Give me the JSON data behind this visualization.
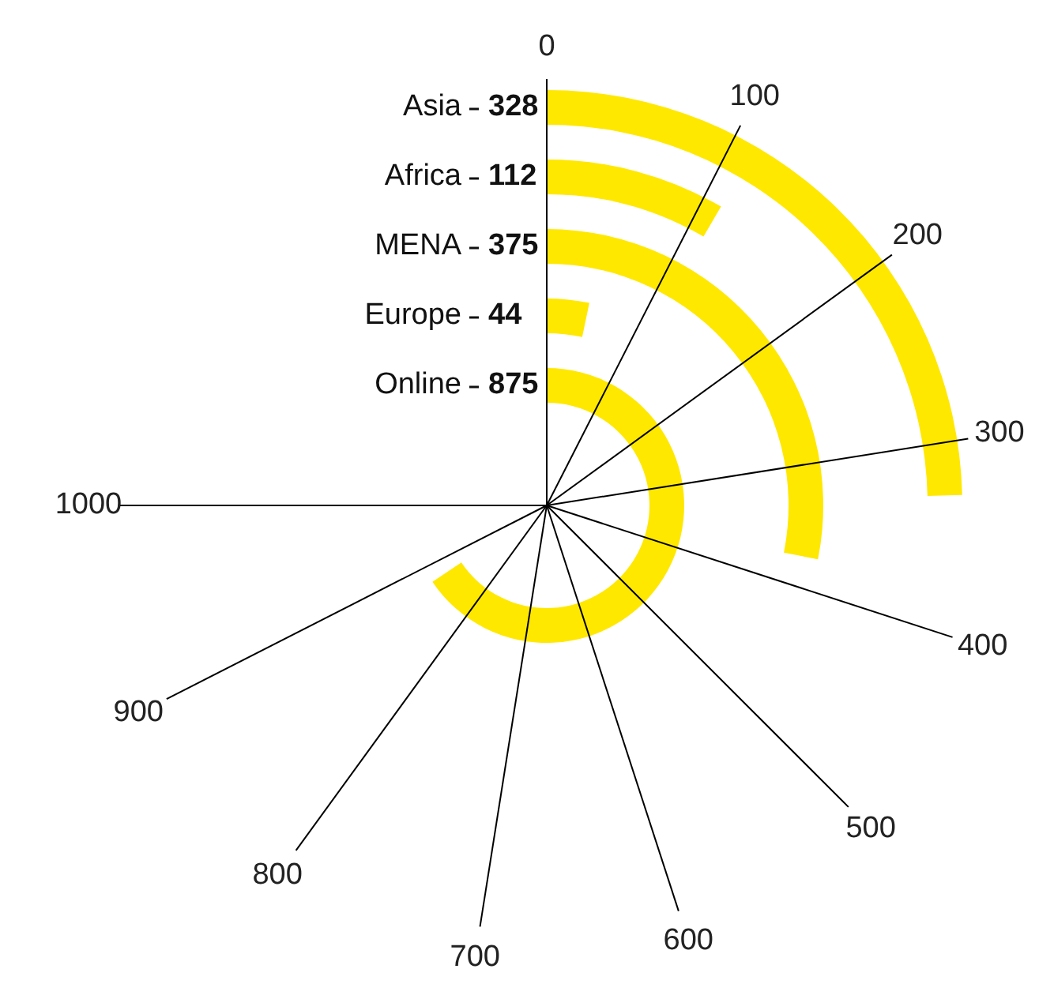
{
  "chart_data": {
    "type": "other",
    "categories": [
      "Asia",
      "Africa",
      "MENA",
      "Europe",
      "Online"
    ],
    "values": [
      328,
      112,
      375,
      44,
      875
    ],
    "color": "#ffe800",
    "annotations": [
      "0",
      "100",
      "200",
      "300",
      "400",
      "500",
      "600",
      "700",
      "800",
      "900",
      "1000"
    ],
    "data_labels": true
  }
}
